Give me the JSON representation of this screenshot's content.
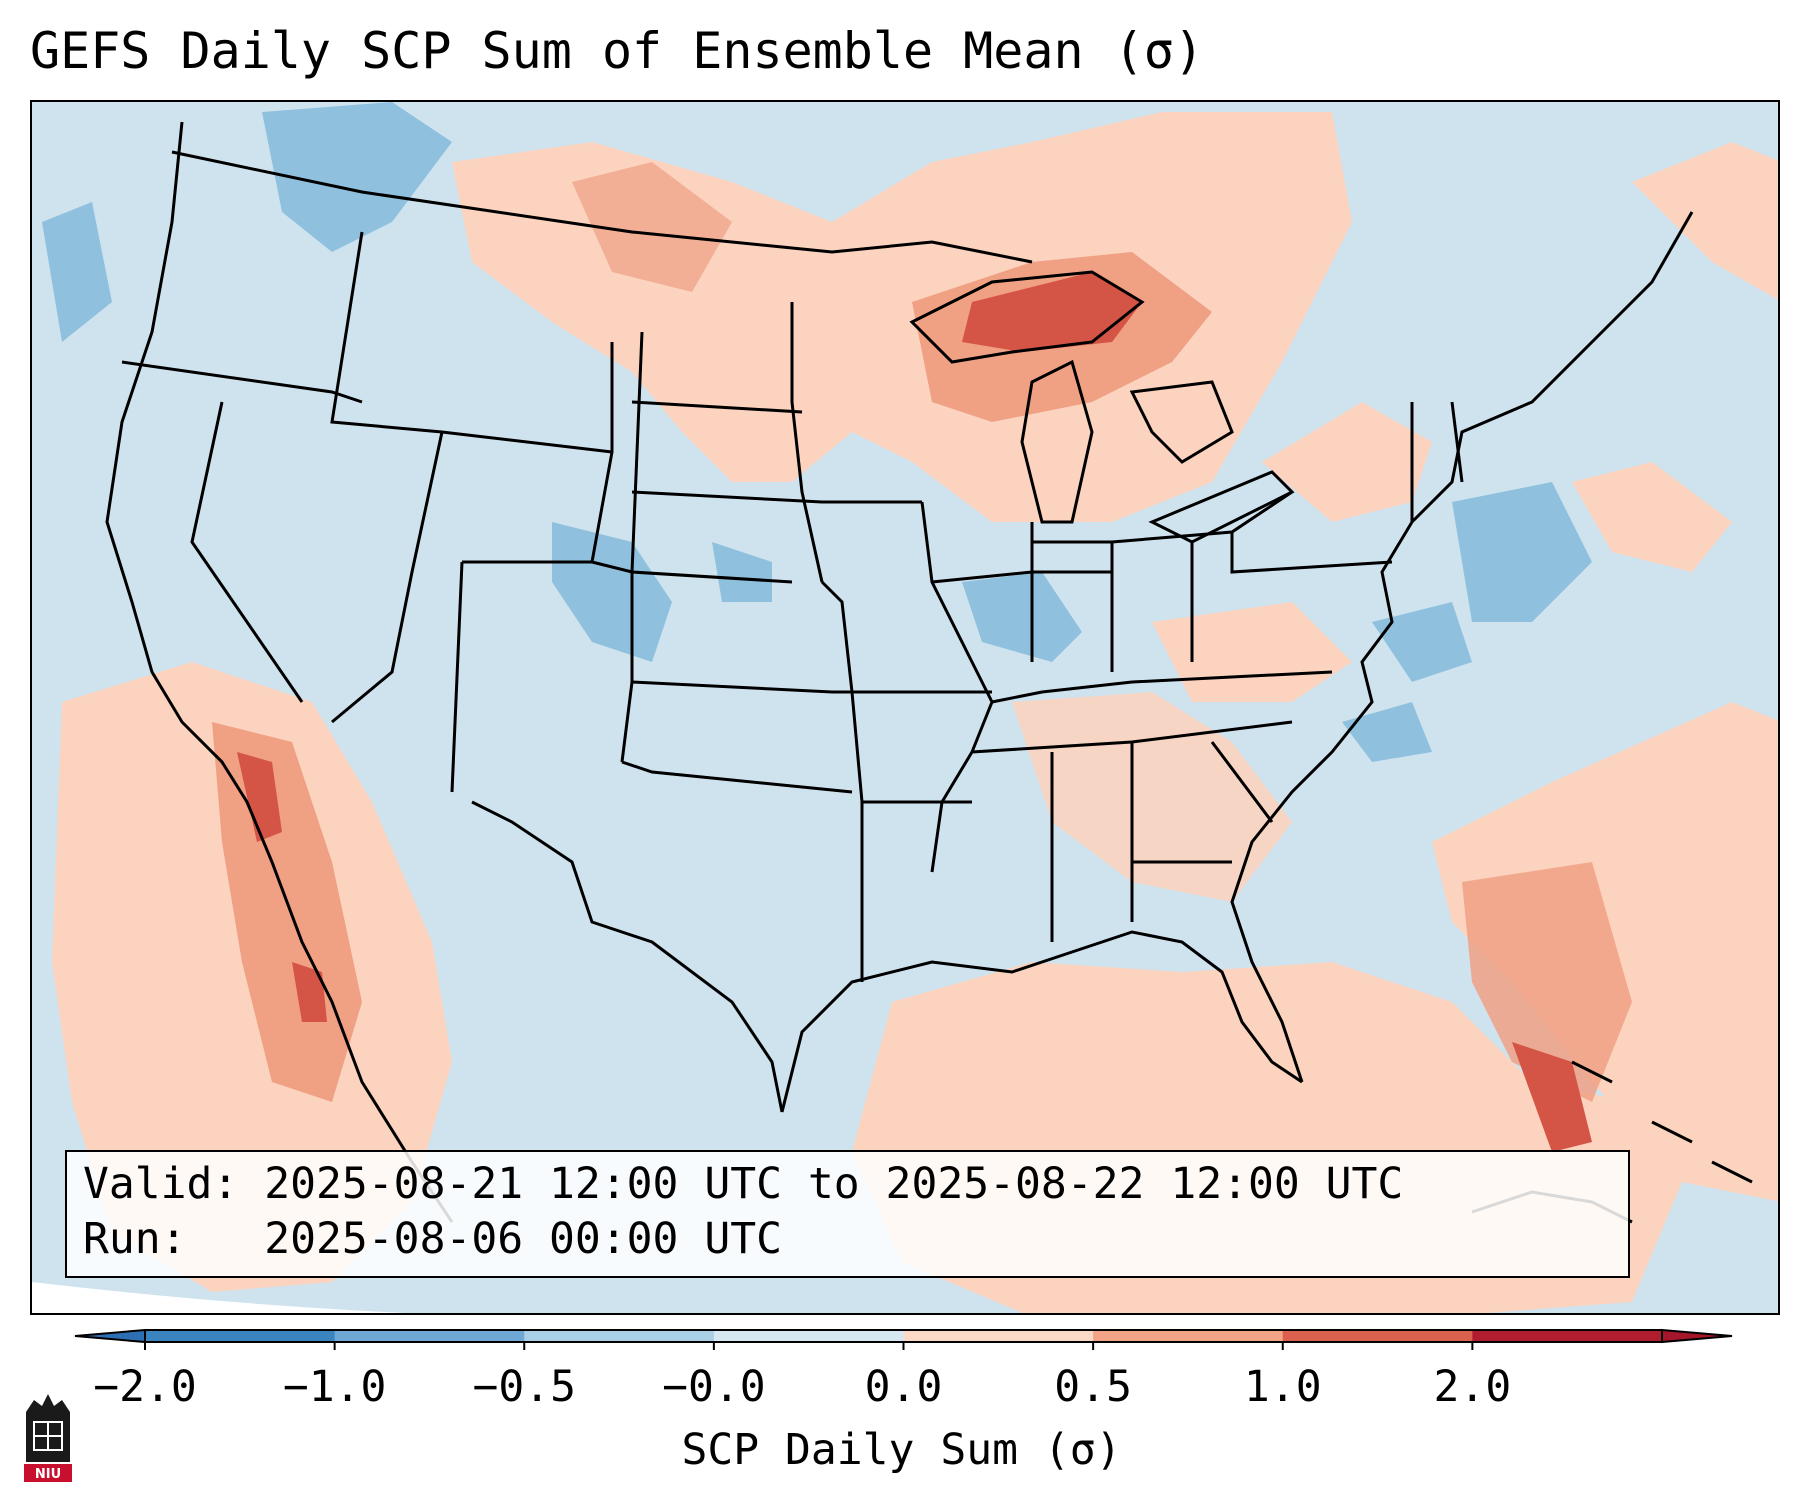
{
  "title": "GEFS Daily SCP Sum of Ensemble Mean (σ)",
  "info": {
    "valid_label": "Valid:",
    "valid_value": "2025-08-21 12:00 UTC to 2025-08-22 12:00 UTC",
    "run_label": "Run:",
    "run_value": "2025-08-06 00:00 UTC"
  },
  "colorbar": {
    "label": "SCP Daily Sum (σ)",
    "ticks": [
      "−2.0",
      "−1.0",
      "−0.5",
      "−0.0",
      "0.0",
      "0.5",
      "1.0",
      "2.0"
    ],
    "colors": [
      "#3a84c0",
      "#6fa8d6",
      "#a8cfe6",
      "#d6e8f2",
      "#fbd9c7",
      "#f2a487",
      "#d9614e",
      "#b01d2e"
    ],
    "extend_low_color": "#2d6fb3",
    "extend_high_color": "#a5162a"
  },
  "map": {
    "region": "Continental United States",
    "background_color": "#cfe3ef",
    "positive_color": "#fbd3bf",
    "positive_mid_color": "#f0a083",
    "positive_high_color": "#d45445",
    "negative_color": "#8fc1de"
  },
  "logo": {
    "text": "NIU",
    "color": "#c8102e"
  }
}
